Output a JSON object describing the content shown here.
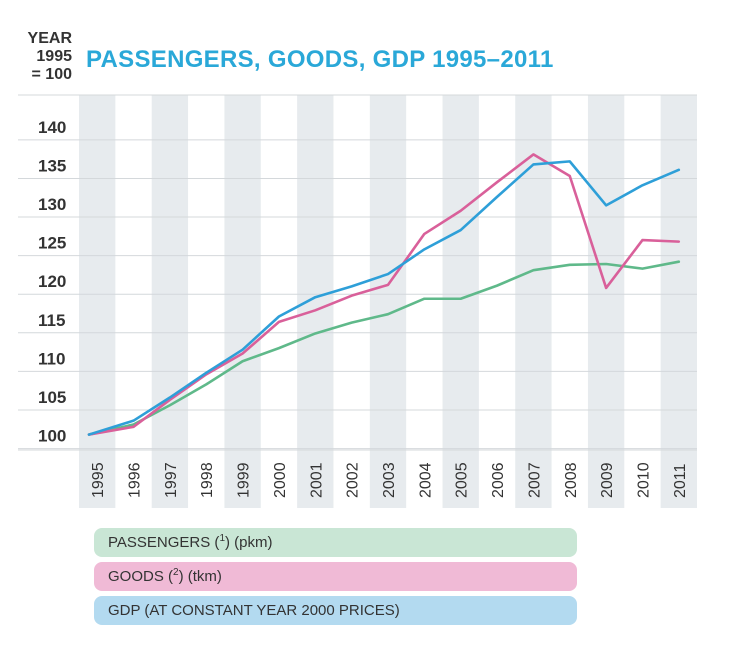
{
  "y_unit": {
    "line1": "YEAR",
    "line2": "1995",
    "line3": "= 100"
  },
  "chart_data": {
    "type": "line",
    "title": "PASSENGERS, GOODS, GDP 1995–2011",
    "xlabel": "",
    "ylabel": "YEAR 1995 = 100",
    "ylim": [
      98,
      144
    ],
    "yticks": [
      100,
      105,
      110,
      115,
      120,
      125,
      130,
      135,
      140
    ],
    "categories": [
      "1995",
      "1996",
      "1997",
      "1998",
      "1999",
      "2000",
      "2001",
      "2002",
      "2003",
      "2004",
      "2005",
      "2006",
      "2007",
      "2008",
      "2009",
      "2010",
      "2011"
    ],
    "series": [
      {
        "name": "PASSENGERS",
        "color": "#5fb98a",
        "values": [
          100,
          101.3,
          103.8,
          106.5,
          109.5,
          111.2,
          113.1,
          114.5,
          115.6,
          117.6,
          117.6,
          119.3,
          121.3,
          122.0,
          122.1,
          121.5,
          122.4
        ]
      },
      {
        "name": "GOODS",
        "color": "#d9609a",
        "values": [
          100,
          101.0,
          104.5,
          107.8,
          110.5,
          114.6,
          116.1,
          118.0,
          119.4,
          126.0,
          129.0,
          132.7,
          136.3,
          133.5,
          119.0,
          125.2,
          125.0
        ]
      },
      {
        "name": "GDP",
        "color": "#2e9fd8",
        "values": [
          100,
          101.8,
          104.8,
          108.0,
          111.0,
          115.3,
          117.8,
          119.2,
          120.8,
          124.0,
          126.5,
          130.8,
          135.0,
          135.4,
          129.7,
          132.3,
          134.3
        ]
      }
    ]
  },
  "legend": {
    "passengers": {
      "text": "PASSENGERS",
      "note": "1",
      "unit": "(pkm)"
    },
    "goods": {
      "text": "GOODS",
      "note": "2",
      "unit": "(tkm)"
    },
    "gdp": {
      "text": "GDP (AT CONSTANT YEAR 2000 PRICES)"
    }
  }
}
